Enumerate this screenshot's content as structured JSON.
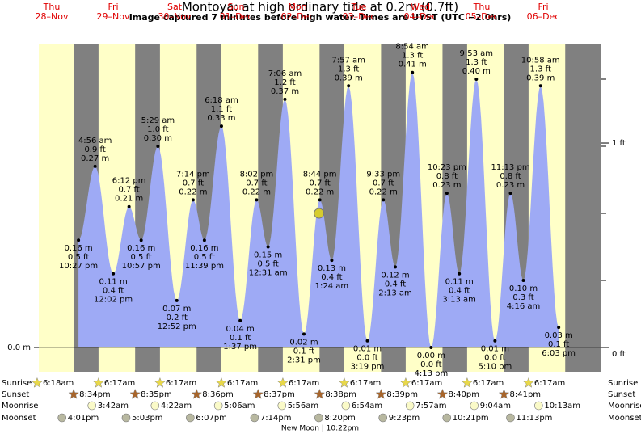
{
  "chart_data": {
    "type": "tide",
    "title": "Montoya: at high  ordinary tide at 0.2m (0.7ft)",
    "subtitle": "Image captured 7 minutes before high water. Times are UYST (UTC −2.0hrs)",
    "current_height_m": 0.2,
    "days": [
      {
        "name": "Thu",
        "date": "28–Nov"
      },
      {
        "name": "Fri",
        "date": "29–Nov"
      },
      {
        "name": "Sat",
        "date": "30–Nov"
      },
      {
        "name": "Sun",
        "date": "01–Dec"
      },
      {
        "name": "Mon",
        "date": "02–Dec"
      },
      {
        "name": "Tue",
        "date": "03–Dec"
      },
      {
        "name": "Wed",
        "date": "04–Dec"
      },
      {
        "name": "Thu",
        "date": "05–Dec"
      },
      {
        "name": "Fri",
        "date": "06–Dec"
      }
    ],
    "extremes": [
      {
        "time": "10:27 pm",
        "m": 0.16,
        "m_label": "0.16 m",
        "ft_label": "0.5 ft"
      },
      {
        "time": "4:56 am",
        "m": 0.27,
        "m_label": "0.27 m",
        "ft_label": "0.9 ft"
      },
      {
        "time": "12:02 pm",
        "m": 0.11,
        "m_label": "0.11 m",
        "ft_label": "0.4 ft"
      },
      {
        "time": "6:12 pm",
        "m": 0.21,
        "m_label": "0.21 m",
        "ft_label": "0.7 ft"
      },
      {
        "time": "10:57 pm",
        "m": 0.16,
        "m_label": "0.16 m",
        "ft_label": "0.5 ft"
      },
      {
        "time": "5:29 am",
        "m": 0.3,
        "m_label": "0.30 m",
        "ft_label": "1.0 ft"
      },
      {
        "time": "12:52 pm",
        "m": 0.07,
        "m_label": "0.07 m",
        "ft_label": "0.2 ft"
      },
      {
        "time": "7:14 pm",
        "m": 0.22,
        "m_label": "0.22 m",
        "ft_label": "0.7 ft"
      },
      {
        "time": "11:39 pm",
        "m": 0.16,
        "m_label": "0.16 m",
        "ft_label": "0.5 ft"
      },
      {
        "time": "6:18 am",
        "m": 0.33,
        "m_label": "0.33 m",
        "ft_label": "1.1 ft"
      },
      {
        "time": "1:37 pm",
        "m": 0.04,
        "m_label": "0.04 m",
        "ft_label": "0.1 ft"
      },
      {
        "time": "8:02 pm",
        "m": 0.22,
        "m_label": "0.22 m",
        "ft_label": "0.7 ft"
      },
      {
        "time": "12:31 am",
        "m": 0.15,
        "m_label": "0.15 m",
        "ft_label": "0.5 ft"
      },
      {
        "time": "7:06 am",
        "m": 0.37,
        "m_label": "0.37 m",
        "ft_label": "1.2 ft"
      },
      {
        "time": "2:31 pm",
        "m": 0.02,
        "m_label": "0.02 m",
        "ft_label": "0.1 ft"
      },
      {
        "time": "8:44 pm",
        "m": 0.22,
        "m_label": "0.22 m",
        "ft_label": "0.7 ft"
      },
      {
        "time": "1:24 am",
        "m": 0.13,
        "m_label": "0.13 m",
        "ft_label": "0.4 ft"
      },
      {
        "time": "7:57 am",
        "m": 0.39,
        "m_label": "0.39 m",
        "ft_label": "1.3 ft"
      },
      {
        "time": "3:19 pm",
        "m": 0.01,
        "m_label": "0.01 m",
        "ft_label": "0.0 ft"
      },
      {
        "time": "9:33 pm",
        "m": 0.22,
        "m_label": "0.22 m",
        "ft_label": "0.7 ft"
      },
      {
        "time": "2:13 am",
        "m": 0.12,
        "m_label": "0.12 m",
        "ft_label": "0.4 ft"
      },
      {
        "time": "8:54 am",
        "m": 0.41,
        "m_label": "0.41 m",
        "ft_label": "1.3 ft"
      },
      {
        "time": "4:13 pm",
        "m": 0.0,
        "m_label": "0.00 m",
        "ft_label": "0.0 ft"
      },
      {
        "time": "10:23 pm",
        "m": 0.23,
        "m_label": "0.23 m",
        "ft_label": "0.8 ft"
      },
      {
        "time": "3:13 am",
        "m": 0.11,
        "m_label": "0.11 m",
        "ft_label": "0.4 ft"
      },
      {
        "time": "9:53 am",
        "m": 0.4,
        "m_label": "0.40 m",
        "ft_label": "1.3 ft"
      },
      {
        "time": "5:10 pm",
        "m": 0.01,
        "m_label": "0.01 m",
        "ft_label": "0.0 ft"
      },
      {
        "time": "11:13 pm",
        "m": 0.23,
        "m_label": "0.23 m",
        "ft_label": "0.8 ft"
      },
      {
        "time": "4:16 am",
        "m": 0.1,
        "m_label": "0.10 m",
        "ft_label": "0.3 ft"
      },
      {
        "time": "10:58 am",
        "m": 0.39,
        "m_label": "0.39 m",
        "ft_label": "1.3 ft"
      },
      {
        "time": "6:03 pm",
        "m": 0.03,
        "m_label": "0.03 m",
        "ft_label": "0.1 ft"
      }
    ],
    "yticks_m": [
      {
        "value": 0,
        "label": "0.0 m"
      }
    ],
    "yticks_ft": [
      {
        "value": 0,
        "label": "0 ft"
      },
      {
        "value": 1,
        "label": "1 ft"
      }
    ],
    "rows": [
      {
        "name": "Sunrise",
        "times": [
          "6:18am",
          "6:17am",
          "6:17am",
          "6:17am",
          "6:17am",
          "6:17am",
          "6:17am",
          "6:17am",
          "6:17am"
        ]
      },
      {
        "name": "Sunset",
        "times": [
          "8:34pm",
          "8:35pm",
          "8:36pm",
          "8:37pm",
          "8:38pm",
          "8:39pm",
          "8:40pm",
          "8:41pm",
          null
        ]
      },
      {
        "name": "Moonrise",
        "times": [
          null,
          "3:42am",
          "4:22am",
          "5:06am",
          "5:56am",
          "6:54am",
          "7:57am",
          "9:04am",
          "10:13am"
        ]
      },
      {
        "name": "Moonset",
        "times": [
          "4:01pm",
          "5:03pm",
          "6:07pm",
          "7:14pm",
          "8:20pm",
          "9:23pm",
          "10:21pm",
          "11:13pm",
          null
        ]
      }
    ],
    "moon_phase": "New Moon | 10:22pm"
  }
}
